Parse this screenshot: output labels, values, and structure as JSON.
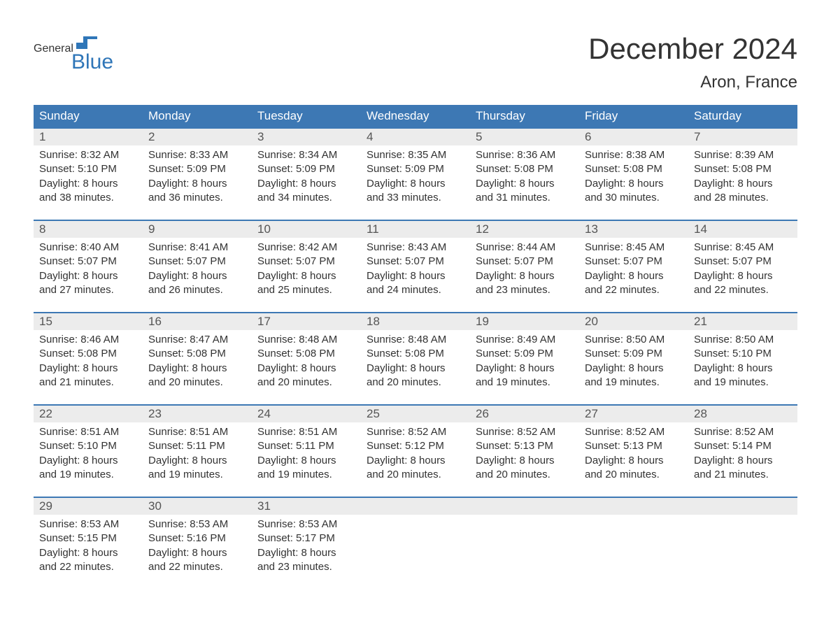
{
  "logo": {
    "word1": "General",
    "word2": "Blue",
    "flag_color": "#2f76b8"
  },
  "title": "December 2024",
  "location": "Aron, France",
  "colors": {
    "header_bg": "#3d78b4",
    "header_text": "#ffffff",
    "row_border": "#3d78b4",
    "daynum_bg": "#ececec",
    "text": "#333333",
    "logo_blue": "#2f76b8"
  },
  "day_names": [
    "Sunday",
    "Monday",
    "Tuesday",
    "Wednesday",
    "Thursday",
    "Friday",
    "Saturday"
  ],
  "weeks": [
    [
      {
        "n": "1",
        "sunrise": "8:32 AM",
        "sunset": "5:10 PM",
        "daylight": "8 hours and 38 minutes."
      },
      {
        "n": "2",
        "sunrise": "8:33 AM",
        "sunset": "5:09 PM",
        "daylight": "8 hours and 36 minutes."
      },
      {
        "n": "3",
        "sunrise": "8:34 AM",
        "sunset": "5:09 PM",
        "daylight": "8 hours and 34 minutes."
      },
      {
        "n": "4",
        "sunrise": "8:35 AM",
        "sunset": "5:09 PM",
        "daylight": "8 hours and 33 minutes."
      },
      {
        "n": "5",
        "sunrise": "8:36 AM",
        "sunset": "5:08 PM",
        "daylight": "8 hours and 31 minutes."
      },
      {
        "n": "6",
        "sunrise": "8:38 AM",
        "sunset": "5:08 PM",
        "daylight": "8 hours and 30 minutes."
      },
      {
        "n": "7",
        "sunrise": "8:39 AM",
        "sunset": "5:08 PM",
        "daylight": "8 hours and 28 minutes."
      }
    ],
    [
      {
        "n": "8",
        "sunrise": "8:40 AM",
        "sunset": "5:07 PM",
        "daylight": "8 hours and 27 minutes."
      },
      {
        "n": "9",
        "sunrise": "8:41 AM",
        "sunset": "5:07 PM",
        "daylight": "8 hours and 26 minutes."
      },
      {
        "n": "10",
        "sunrise": "8:42 AM",
        "sunset": "5:07 PM",
        "daylight": "8 hours and 25 minutes."
      },
      {
        "n": "11",
        "sunrise": "8:43 AM",
        "sunset": "5:07 PM",
        "daylight": "8 hours and 24 minutes."
      },
      {
        "n": "12",
        "sunrise": "8:44 AM",
        "sunset": "5:07 PM",
        "daylight": "8 hours and 23 minutes."
      },
      {
        "n": "13",
        "sunrise": "8:45 AM",
        "sunset": "5:07 PM",
        "daylight": "8 hours and 22 minutes."
      },
      {
        "n": "14",
        "sunrise": "8:45 AM",
        "sunset": "5:07 PM",
        "daylight": "8 hours and 22 minutes."
      }
    ],
    [
      {
        "n": "15",
        "sunrise": "8:46 AM",
        "sunset": "5:08 PM",
        "daylight": "8 hours and 21 minutes."
      },
      {
        "n": "16",
        "sunrise": "8:47 AM",
        "sunset": "5:08 PM",
        "daylight": "8 hours and 20 minutes."
      },
      {
        "n": "17",
        "sunrise": "8:48 AM",
        "sunset": "5:08 PM",
        "daylight": "8 hours and 20 minutes."
      },
      {
        "n": "18",
        "sunrise": "8:48 AM",
        "sunset": "5:08 PM",
        "daylight": "8 hours and 20 minutes."
      },
      {
        "n": "19",
        "sunrise": "8:49 AM",
        "sunset": "5:09 PM",
        "daylight": "8 hours and 19 minutes."
      },
      {
        "n": "20",
        "sunrise": "8:50 AM",
        "sunset": "5:09 PM",
        "daylight": "8 hours and 19 minutes."
      },
      {
        "n": "21",
        "sunrise": "8:50 AM",
        "sunset": "5:10 PM",
        "daylight": "8 hours and 19 minutes."
      }
    ],
    [
      {
        "n": "22",
        "sunrise": "8:51 AM",
        "sunset": "5:10 PM",
        "daylight": "8 hours and 19 minutes."
      },
      {
        "n": "23",
        "sunrise": "8:51 AM",
        "sunset": "5:11 PM",
        "daylight": "8 hours and 19 minutes."
      },
      {
        "n": "24",
        "sunrise": "8:51 AM",
        "sunset": "5:11 PM",
        "daylight": "8 hours and 19 minutes."
      },
      {
        "n": "25",
        "sunrise": "8:52 AM",
        "sunset": "5:12 PM",
        "daylight": "8 hours and 20 minutes."
      },
      {
        "n": "26",
        "sunrise": "8:52 AM",
        "sunset": "5:13 PM",
        "daylight": "8 hours and 20 minutes."
      },
      {
        "n": "27",
        "sunrise": "8:52 AM",
        "sunset": "5:13 PM",
        "daylight": "8 hours and 20 minutes."
      },
      {
        "n": "28",
        "sunrise": "8:52 AM",
        "sunset": "5:14 PM",
        "daylight": "8 hours and 21 minutes."
      }
    ],
    [
      {
        "n": "29",
        "sunrise": "8:53 AM",
        "sunset": "5:15 PM",
        "daylight": "8 hours and 22 minutes."
      },
      {
        "n": "30",
        "sunrise": "8:53 AM",
        "sunset": "5:16 PM",
        "daylight": "8 hours and 22 minutes."
      },
      {
        "n": "31",
        "sunrise": "8:53 AM",
        "sunset": "5:17 PM",
        "daylight": "8 hours and 23 minutes."
      },
      null,
      null,
      null,
      null
    ]
  ],
  "labels": {
    "sunrise_prefix": "Sunrise: ",
    "sunset_prefix": "Sunset: ",
    "daylight_prefix": "Daylight: "
  }
}
